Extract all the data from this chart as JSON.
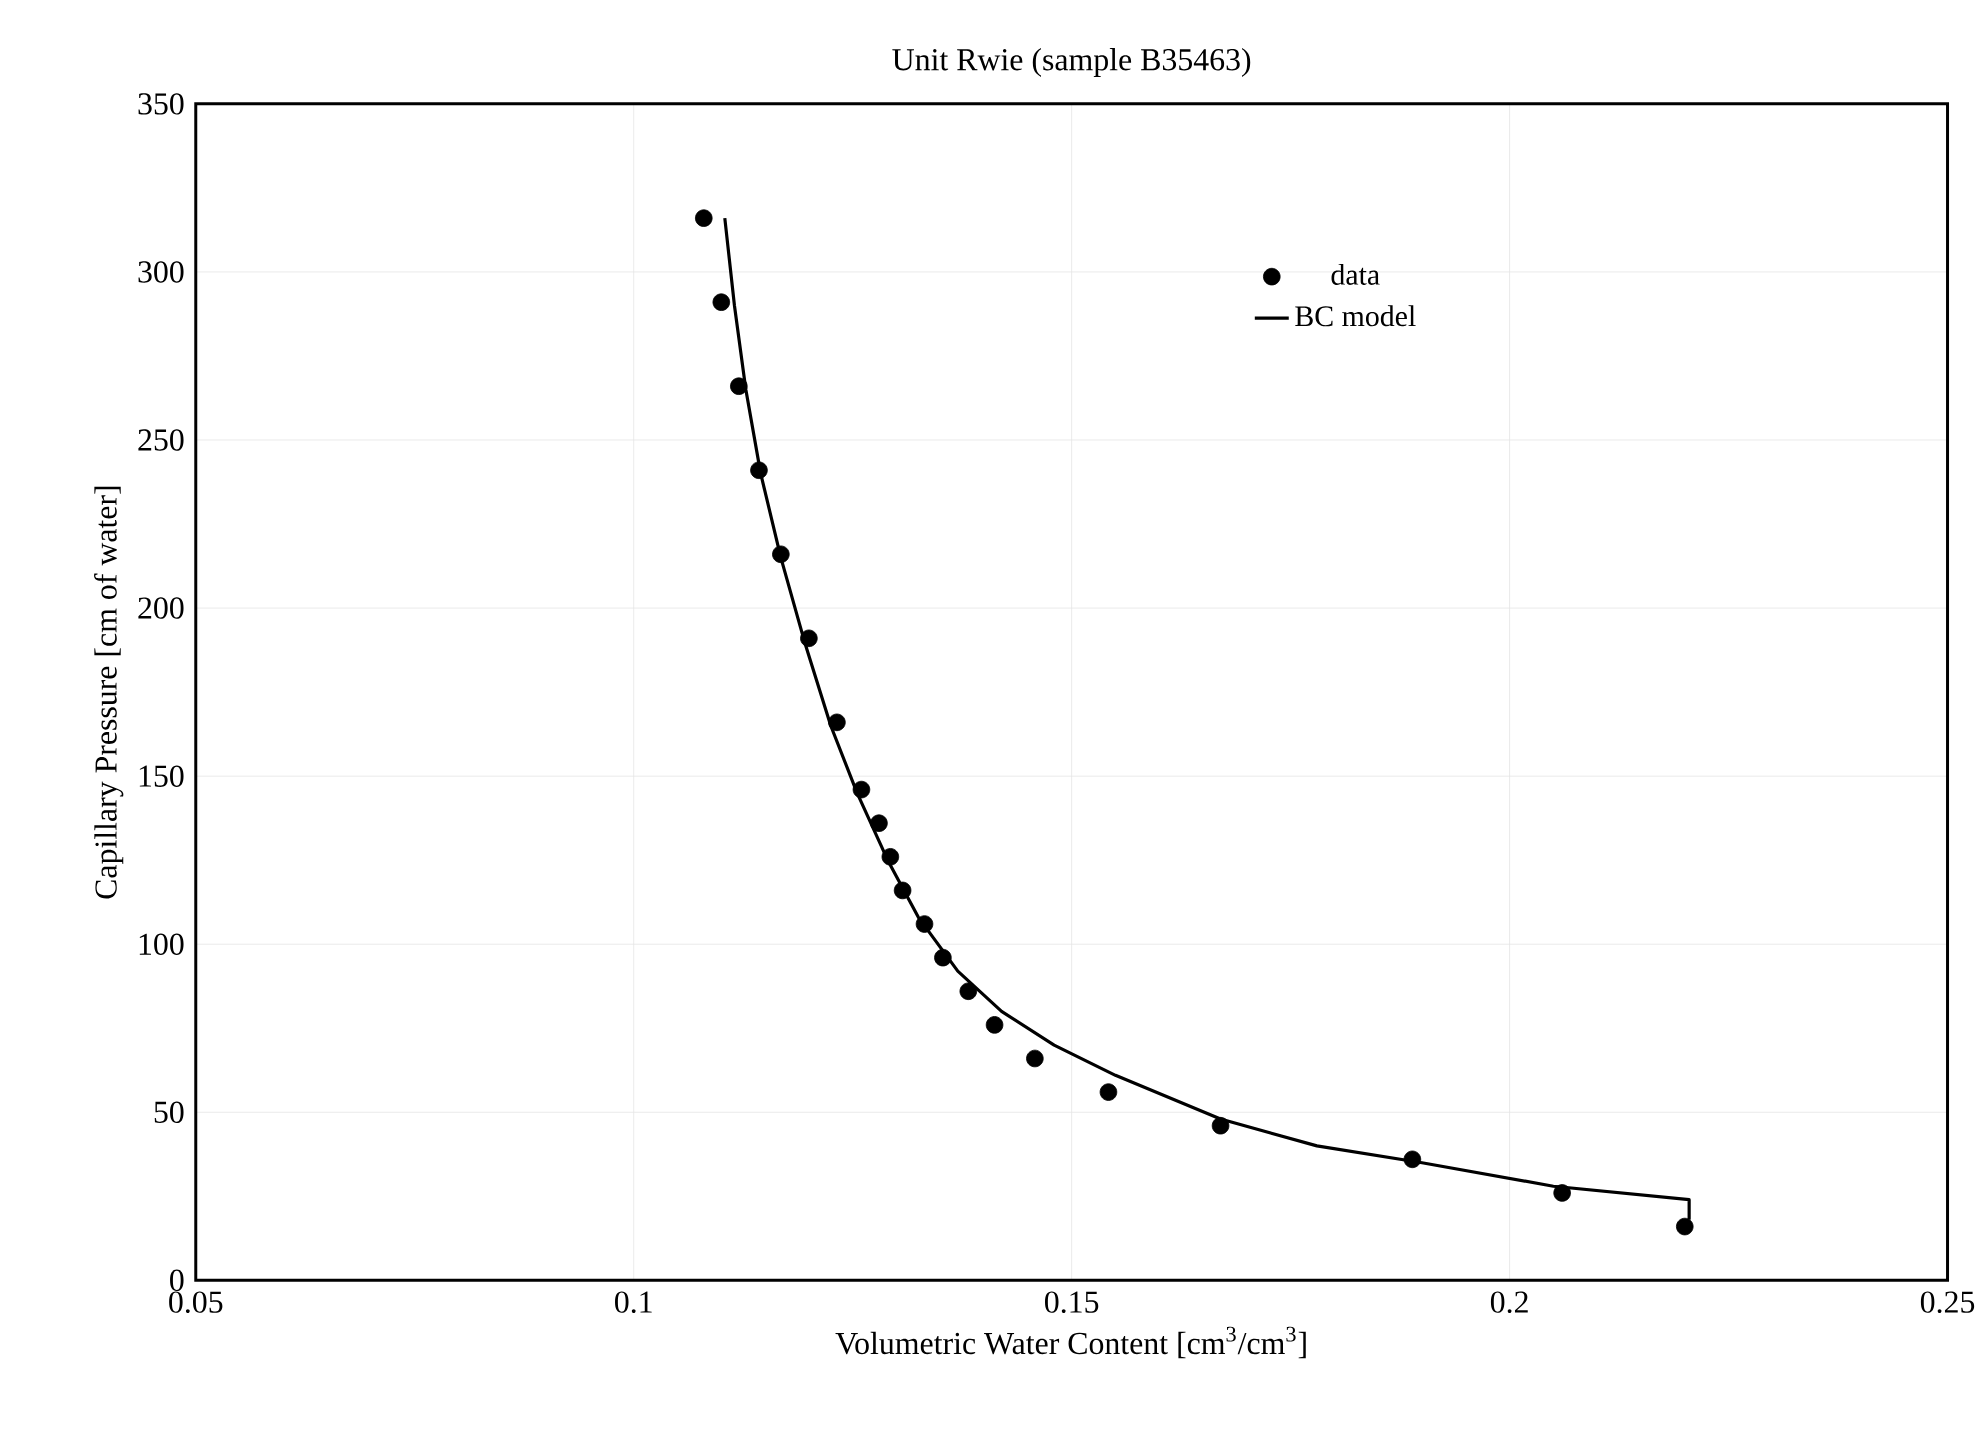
{
  "chart_data": {
    "type": "scatter",
    "title": "Unit Rwie (sample B35463)",
    "xlabel": "Volumetric Water Content [cm$^{3}$/cm$^{3}$]",
    "ylabel": "Capillary Pressure [cm of water]",
    "xlim": [
      0.05,
      0.25
    ],
    "xticks": [
      0.05,
      0.1,
      0.15,
      0.2,
      0.25
    ],
    "ylim": [
      0,
      350
    ],
    "yticks": [
      0,
      50,
      100,
      150,
      200,
      250,
      300,
      350
    ],
    "grid": true,
    "legend": "top right",
    "series": [
      {
        "name": "data",
        "marker": "circle",
        "color": "#000000",
        "x": [
          0.108,
          0.11,
          0.112,
          0.1143,
          0.1168,
          0.12,
          0.1232,
          0.126,
          0.128,
          0.1293,
          0.1307,
          0.1332,
          0.1353,
          0.1382,
          0.1412,
          0.1458,
          0.1542,
          0.167,
          0.1889,
          0.206,
          0.22
        ],
        "values": [
          316,
          291,
          266,
          241,
          216,
          191,
          166,
          146,
          136,
          126,
          116,
          106,
          96,
          86,
          76,
          66,
          56,
          46,
          36,
          26,
          16
        ]
      },
      {
        "name": "BC model",
        "type": "line",
        "marker": "none",
        "line_style": "solid",
        "color": "#000000",
        "x": [
          0.1104,
          0.1115,
          0.1128,
          0.1145,
          0.1168,
          0.1195,
          0.1225,
          0.1255,
          0.129,
          0.1325,
          0.137,
          0.142,
          0.148,
          0.155,
          0.167,
          0.178,
          0.19,
          0.205,
          0.2205,
          0.2205
        ],
        "values": [
          316,
          290,
          265,
          240,
          215,
          190,
          165,
          145,
          125,
          108,
          92,
          80,
          70,
          61,
          48,
          40,
          35,
          28,
          24,
          18
        ]
      }
    ]
  }
}
